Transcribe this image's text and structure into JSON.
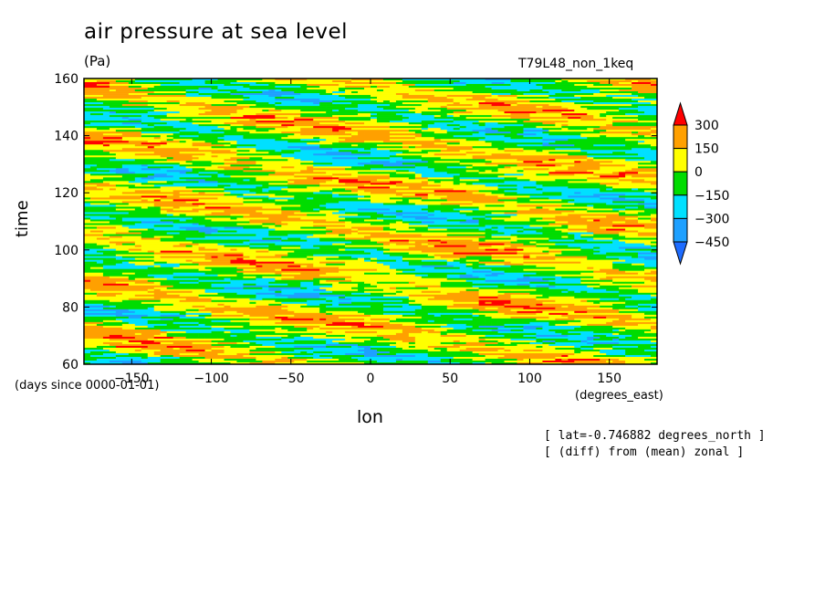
{
  "chart_data": {
    "type": "heatmap",
    "title": "air pressure at sea level",
    "units": "(Pa)",
    "run_label": "T79L48_non_1keq",
    "xlabel": "lon",
    "ylabel": "time",
    "x_units": "(degrees_east)",
    "y_units": "(days since 0000-01-01)",
    "notes": [
      "[ lat=-0.746882 degrees_north ]",
      "[ (diff) from (mean) zonal ]"
    ],
    "xlim": [
      -180,
      180
    ],
    "ylim": [
      60,
      160
    ],
    "x_ticks": [
      -150,
      -100,
      -50,
      0,
      50,
      100,
      150
    ],
    "y_ticks": [
      60,
      80,
      100,
      120,
      140,
      160
    ],
    "x_tick_labels": [
      "−150",
      "−100",
      "−50",
      "0",
      "50",
      "100",
      "150"
    ],
    "y_tick_labels": [
      "60",
      "80",
      "100",
      "120",
      "140",
      "160"
    ],
    "colorbar": {
      "levels": [
        -450,
        -300,
        -150,
        0,
        150,
        300
      ],
      "labels": [
        "300",
        "150",
        "0",
        "−150",
        "−300",
        "−450"
      ],
      "colors": [
        "#1e6cff",
        "#1ea0ff",
        "#00e0ff",
        "#00dc00",
        "#ffff00",
        "#ffa000",
        "#ff0000"
      ]
    }
  }
}
